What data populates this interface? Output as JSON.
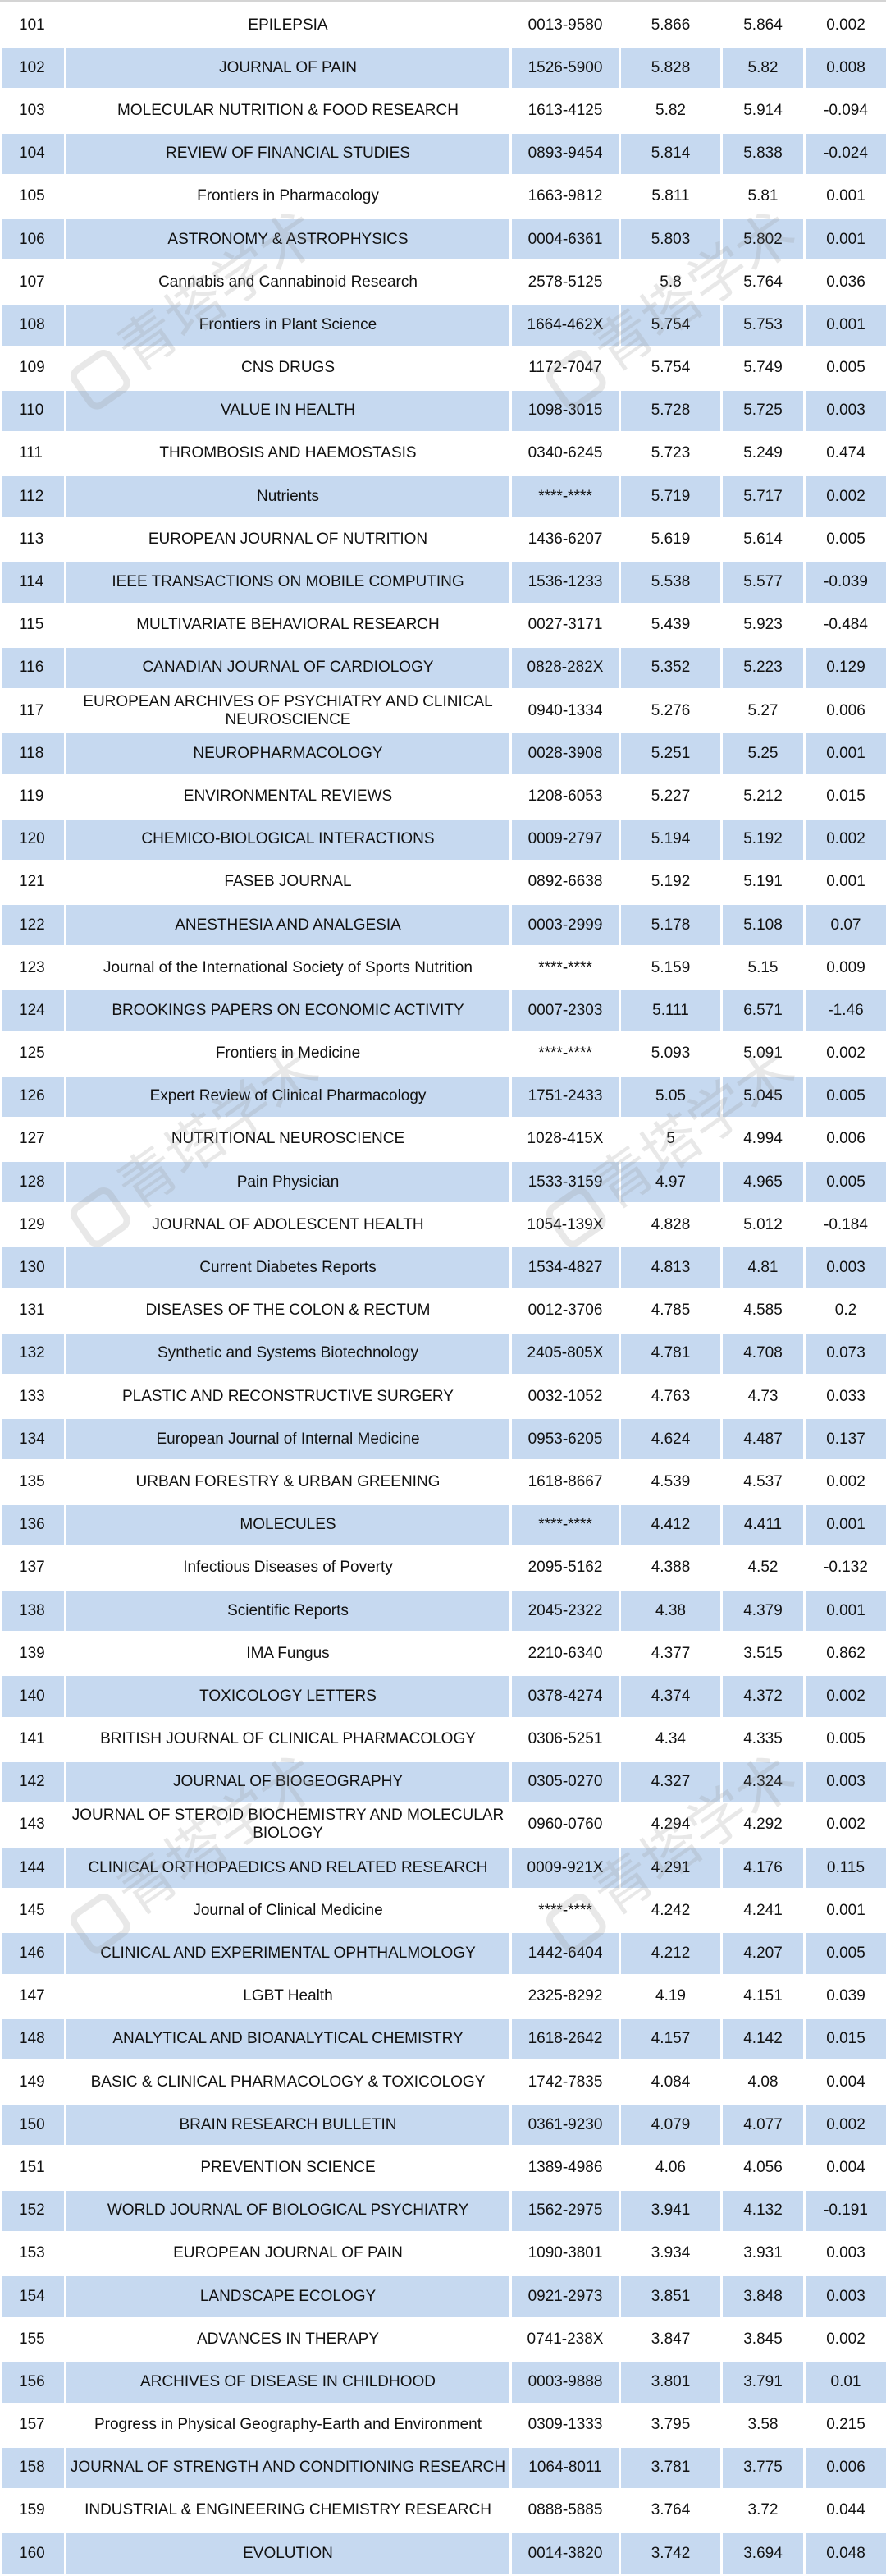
{
  "watermark": "青塔学术",
  "colors": {
    "alt_row": "#c6d9f0",
    "row": "#ffffff"
  },
  "rows": [
    [
      "101",
      "EPILEPSIA",
      "0013-9580",
      "5.866",
      "5.864",
      "0.002"
    ],
    [
      "102",
      "JOURNAL OF PAIN",
      "1526-5900",
      "5.828",
      "5.82",
      "0.008"
    ],
    [
      "103",
      "MOLECULAR NUTRITION & FOOD RESEARCH",
      "1613-4125",
      "5.82",
      "5.914",
      "-0.094"
    ],
    [
      "104",
      "REVIEW OF FINANCIAL STUDIES",
      "0893-9454",
      "5.814",
      "5.838",
      "-0.024"
    ],
    [
      "105",
      "Frontiers in Pharmacology",
      "1663-9812",
      "5.811",
      "5.81",
      "0.001"
    ],
    [
      "106",
      "ASTRONOMY & ASTROPHYSICS",
      "0004-6361",
      "5.803",
      "5.802",
      "0.001"
    ],
    [
      "107",
      "Cannabis and Cannabinoid Research",
      "2578-5125",
      "5.8",
      "5.764",
      "0.036"
    ],
    [
      "108",
      "Frontiers in Plant Science",
      "1664-462X",
      "5.754",
      "5.753",
      "0.001"
    ],
    [
      "109",
      "CNS DRUGS",
      "1172-7047",
      "5.754",
      "5.749",
      "0.005"
    ],
    [
      "110",
      "VALUE IN HEALTH",
      "1098-3015",
      "5.728",
      "5.725",
      "0.003"
    ],
    [
      "111",
      "THROMBOSIS AND HAEMOSTASIS",
      "0340-6245",
      "5.723",
      "5.249",
      "0.474"
    ],
    [
      "112",
      "Nutrients",
      "****-****",
      "5.719",
      "5.717",
      "0.002"
    ],
    [
      "113",
      "EUROPEAN JOURNAL OF NUTRITION",
      "1436-6207",
      "5.619",
      "5.614",
      "0.005"
    ],
    [
      "114",
      "IEEE TRANSACTIONS ON MOBILE COMPUTING",
      "1536-1233",
      "5.538",
      "5.577",
      "-0.039"
    ],
    [
      "115",
      "MULTIVARIATE BEHAVIORAL RESEARCH",
      "0027-3171",
      "5.439",
      "5.923",
      "-0.484"
    ],
    [
      "116",
      "CANADIAN JOURNAL OF CARDIOLOGY",
      "0828-282X",
      "5.352",
      "5.223",
      "0.129"
    ],
    [
      "117",
      "EUROPEAN ARCHIVES OF PSYCHIATRY AND CLINICAL NEUROSCIENCE",
      "0940-1334",
      "5.276",
      "5.27",
      "0.006"
    ],
    [
      "118",
      "NEUROPHARMACOLOGY",
      "0028-3908",
      "5.251",
      "5.25",
      "0.001"
    ],
    [
      "119",
      "ENVIRONMENTAL REVIEWS",
      "1208-6053",
      "5.227",
      "5.212",
      "0.015"
    ],
    [
      "120",
      "CHEMICO-BIOLOGICAL INTERACTIONS",
      "0009-2797",
      "5.194",
      "5.192",
      "0.002"
    ],
    [
      "121",
      "FASEB JOURNAL",
      "0892-6638",
      "5.192",
      "5.191",
      "0.001"
    ],
    [
      "122",
      "ANESTHESIA AND ANALGESIA",
      "0003-2999",
      "5.178",
      "5.108",
      "0.07"
    ],
    [
      "123",
      "Journal of the International Society of Sports Nutrition",
      "****-****",
      "5.159",
      "5.15",
      "0.009"
    ],
    [
      "124",
      "BROOKINGS PAPERS ON ECONOMIC ACTIVITY",
      "0007-2303",
      "5.111",
      "6.571",
      "-1.46"
    ],
    [
      "125",
      "Frontiers in Medicine",
      "****-****",
      "5.093",
      "5.091",
      "0.002"
    ],
    [
      "126",
      "Expert Review of Clinical Pharmacology",
      "1751-2433",
      "5.05",
      "5.045",
      "0.005"
    ],
    [
      "127",
      "NUTRITIONAL NEUROSCIENCE",
      "1028-415X",
      "5",
      "4.994",
      "0.006"
    ],
    [
      "128",
      "Pain Physician",
      "1533-3159",
      "4.97",
      "4.965",
      "0.005"
    ],
    [
      "129",
      "JOURNAL OF ADOLESCENT HEALTH",
      "1054-139X",
      "4.828",
      "5.012",
      "-0.184"
    ],
    [
      "130",
      "Current Diabetes Reports",
      "1534-4827",
      "4.813",
      "4.81",
      "0.003"
    ],
    [
      "131",
      "DISEASES OF THE COLON & RECTUM",
      "0012-3706",
      "4.785",
      "4.585",
      "0.2"
    ],
    [
      "132",
      "Synthetic and Systems Biotechnology",
      "2405-805X",
      "4.781",
      "4.708",
      "0.073"
    ],
    [
      "133",
      "PLASTIC AND RECONSTRUCTIVE SURGERY",
      "0032-1052",
      "4.763",
      "4.73",
      "0.033"
    ],
    [
      "134",
      "European Journal of Internal Medicine",
      "0953-6205",
      "4.624",
      "4.487",
      "0.137"
    ],
    [
      "135",
      "URBAN FORESTRY & URBAN GREENING",
      "1618-8667",
      "4.539",
      "4.537",
      "0.002"
    ],
    [
      "136",
      "MOLECULES",
      "****-****",
      "4.412",
      "4.411",
      "0.001"
    ],
    [
      "137",
      "Infectious Diseases of Poverty",
      "2095-5162",
      "4.388",
      "4.52",
      "-0.132"
    ],
    [
      "138",
      "Scientific Reports",
      "2045-2322",
      "4.38",
      "4.379",
      "0.001"
    ],
    [
      "139",
      "IMA Fungus",
      "2210-6340",
      "4.377",
      "3.515",
      "0.862"
    ],
    [
      "140",
      "TOXICOLOGY LETTERS",
      "0378-4274",
      "4.374",
      "4.372",
      "0.002"
    ],
    [
      "141",
      "BRITISH JOURNAL OF CLINICAL PHARMACOLOGY",
      "0306-5251",
      "4.34",
      "4.335",
      "0.005"
    ],
    [
      "142",
      "JOURNAL OF BIOGEOGRAPHY",
      "0305-0270",
      "4.327",
      "4.324",
      "0.003"
    ],
    [
      "143",
      "JOURNAL OF STEROID BIOCHEMISTRY AND MOLECULAR BIOLOGY",
      "0960-0760",
      "4.294",
      "4.292",
      "0.002"
    ],
    [
      "144",
      "CLINICAL ORTHOPAEDICS AND RELATED RESEARCH",
      "0009-921X",
      "4.291",
      "4.176",
      "0.115"
    ],
    [
      "145",
      "Journal of Clinical Medicine",
      "****-****",
      "4.242",
      "4.241",
      "0.001"
    ],
    [
      "146",
      "CLINICAL AND EXPERIMENTAL OPHTHALMOLOGY",
      "1442-6404",
      "4.212",
      "4.207",
      "0.005"
    ],
    [
      "147",
      "LGBT Health",
      "2325-8292",
      "4.19",
      "4.151",
      "0.039"
    ],
    [
      "148",
      "ANALYTICAL AND BIOANALYTICAL CHEMISTRY",
      "1618-2642",
      "4.157",
      "4.142",
      "0.015"
    ],
    [
      "149",
      "BASIC & CLINICAL PHARMACOLOGY & TOXICOLOGY",
      "1742-7835",
      "4.084",
      "4.08",
      "0.004"
    ],
    [
      "150",
      "BRAIN RESEARCH BULLETIN",
      "0361-9230",
      "4.079",
      "4.077",
      "0.002"
    ],
    [
      "151",
      "PREVENTION SCIENCE",
      "1389-4986",
      "4.06",
      "4.056",
      "0.004"
    ],
    [
      "152",
      "WORLD JOURNAL OF BIOLOGICAL PSYCHIATRY",
      "1562-2975",
      "3.941",
      "4.132",
      "-0.191"
    ],
    [
      "153",
      "EUROPEAN JOURNAL OF PAIN",
      "1090-3801",
      "3.934",
      "3.931",
      "0.003"
    ],
    [
      "154",
      "LANDSCAPE ECOLOGY",
      "0921-2973",
      "3.851",
      "3.848",
      "0.003"
    ],
    [
      "155",
      "ADVANCES IN THERAPY",
      "0741-238X",
      "3.847",
      "3.845",
      "0.002"
    ],
    [
      "156",
      "ARCHIVES OF DISEASE IN CHILDHOOD",
      "0003-9888",
      "3.801",
      "3.791",
      "0.01"
    ],
    [
      "157",
      "Progress in Physical Geography-Earth and Environment",
      "0309-1333",
      "3.795",
      "3.58",
      "0.215"
    ],
    [
      "158",
      "JOURNAL OF STRENGTH AND CONDITIONING RESEARCH",
      "1064-8011",
      "3.781",
      "3.775",
      "0.006"
    ],
    [
      "159",
      "INDUSTRIAL & ENGINEERING CHEMISTRY RESEARCH",
      "0888-5885",
      "3.764",
      "3.72",
      "0.044"
    ],
    [
      "160",
      "EVOLUTION",
      "0014-3820",
      "3.742",
      "3.694",
      "0.048"
    ]
  ]
}
